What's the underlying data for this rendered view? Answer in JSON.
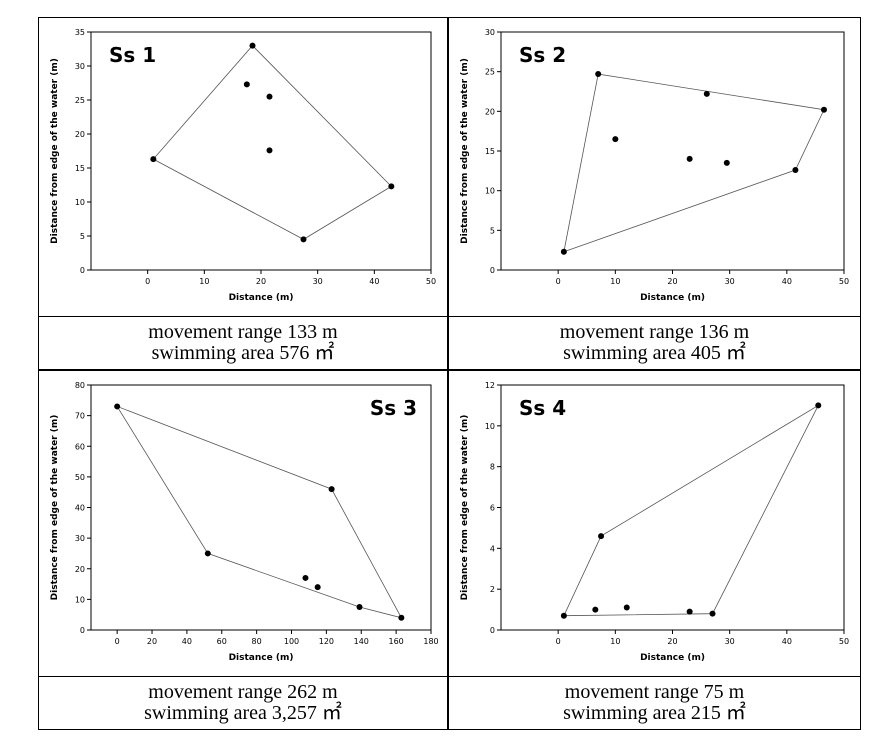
{
  "chart_data": [
    {
      "type": "scatter",
      "title": "Ss 1",
      "title_position": "top-left",
      "x": [
        1,
        18.5,
        17.5,
        21.5,
        21.5,
        43,
        27.5
      ],
      "y": [
        16.3,
        33,
        27.3,
        25.5,
        17.6,
        12.3,
        4.5
      ],
      "xlim": [
        -10,
        50
      ],
      "xticks": [
        0,
        10,
        20,
        30,
        40,
        50
      ],
      "ylim": [
        0,
        35
      ],
      "yticks": [
        0,
        5,
        10,
        15,
        20,
        25,
        30,
        35
      ],
      "xlabel": "Distance (m)",
      "ylabel": "Distance from edge of the water (m)",
      "color": "#000000",
      "hull": true,
      "caption": [
        "movement range 133 m",
        "swimming area 576 ㎡"
      ]
    },
    {
      "type": "scatter",
      "title": "Ss 2",
      "title_position": "top-left",
      "x": [
        1,
        7,
        26,
        46.5,
        41.5,
        10,
        23,
        29.5
      ],
      "y": [
        2.3,
        24.7,
        22.2,
        20.2,
        12.6,
        16.5,
        14,
        13.5
      ],
      "xlim": [
        -10,
        50
      ],
      "xticks": [
        0,
        10,
        20,
        30,
        40,
        50
      ],
      "ylim": [
        0,
        30
      ],
      "yticks": [
        0,
        5,
        10,
        15,
        20,
        25,
        30
      ],
      "xlabel": "Distance (m)",
      "ylabel": "Distance from edge of the water (m)",
      "color": "#000000",
      "hull": true,
      "caption": [
        "movement range 136 m",
        "swimming area 405 ㎡"
      ]
    },
    {
      "type": "scatter",
      "title": "Ss 3",
      "title_position": "top-right",
      "x": [
        0,
        123,
        52,
        108,
        115,
        139,
        163
      ],
      "y": [
        73,
        46,
        25,
        17,
        14,
        7.5,
        4
      ],
      "xlim": [
        -15,
        180
      ],
      "xticks": [
        0,
        20,
        40,
        60,
        80,
        100,
        120,
        140,
        160,
        180
      ],
      "ylim": [
        0,
        80
      ],
      "yticks": [
        0,
        10,
        20,
        30,
        40,
        50,
        60,
        70,
        80
      ],
      "xlabel": "Distance (m)",
      "ylabel": "Distance from edge of the water (m)",
      "color": "#000000",
      "hull": true,
      "caption": [
        "movement range 262 m",
        "swimming area 3,257 ㎡"
      ]
    },
    {
      "type": "scatter",
      "title": "Ss 4",
      "title_position": "top-left",
      "x": [
        1,
        7.5,
        45.5,
        27,
        23,
        12,
        6.5
      ],
      "y": [
        0.7,
        4.6,
        11,
        0.8,
        0.9,
        1.1,
        1
      ],
      "xlim": [
        -10,
        50
      ],
      "xticks": [
        0,
        10,
        20,
        30,
        40,
        50
      ],
      "ylim": [
        0,
        12
      ],
      "yticks": [
        0,
        2,
        4,
        6,
        8,
        10,
        12
      ],
      "xlabel": "Distance (m)",
      "ylabel": "Distance from edge of the water (m)",
      "color": "#000000",
      "hull": true,
      "caption": [
        "movement range 75 m",
        "swimming area 215 ㎡"
      ]
    }
  ]
}
